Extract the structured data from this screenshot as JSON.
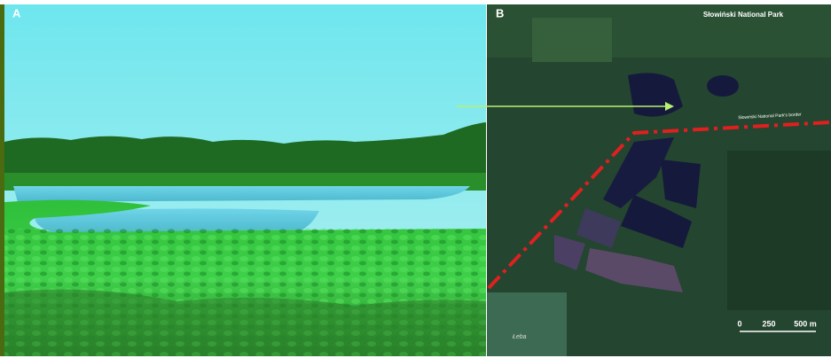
{
  "panels": [
    {
      "label": "A"
    },
    {
      "label": "B",
      "title": "Słowiński National Park",
      "border_label": "Słowiński National Park's border",
      "place_label": "Łeba",
      "scale_bar": {
        "labels": [
          "0",
          "250",
          "500 m"
        ]
      }
    }
  ]
}
